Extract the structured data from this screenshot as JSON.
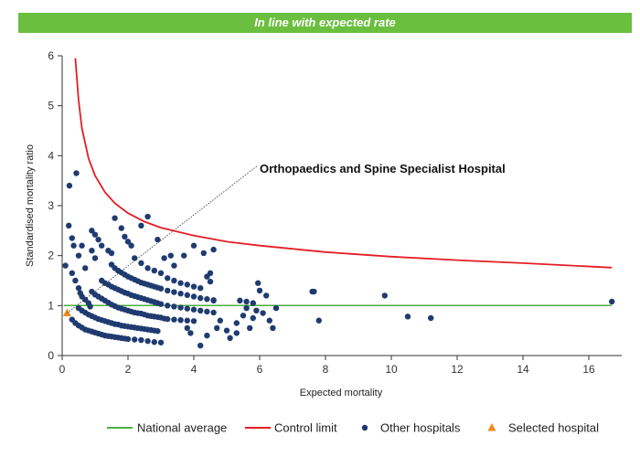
{
  "banner": {
    "text": "In line with expected rate"
  },
  "chart_data": {
    "type": "scatter",
    "title": "",
    "xlabel": "Expected mortality",
    "ylabel": "Standardised mortality ratio",
    "xlim": [
      0,
      17
    ],
    "ylim": [
      0,
      6
    ],
    "xticks": [
      0,
      2,
      4,
      6,
      8,
      10,
      12,
      14,
      16
    ],
    "yticks": [
      0,
      1,
      2,
      3,
      4,
      5,
      6
    ],
    "grid": false,
    "legend_position": "bottom",
    "annotation": {
      "text": "Orthopaedics and Spine Specialist Hospital",
      "target": [
        0.15,
        0.85
      ]
    },
    "series": [
      {
        "name": "National average",
        "kind": "line",
        "color": "#4caf3f",
        "x": [
          0.05,
          16.7
        ],
        "y": [
          1,
          1
        ]
      },
      {
        "name": "Control limit",
        "kind": "line",
        "color": "#e31e24",
        "x": [
          0.4,
          0.5,
          0.6,
          0.8,
          1.0,
          1.3,
          1.6,
          2.0,
          2.5,
          3.0,
          4.0,
          5.0,
          6.0,
          8.0,
          10.0,
          12.0,
          14.0,
          16.7
        ],
        "y": [
          5.95,
          5.1,
          4.55,
          3.95,
          3.6,
          3.27,
          3.05,
          2.85,
          2.68,
          2.56,
          2.4,
          2.28,
          2.2,
          2.07,
          1.98,
          1.91,
          1.85,
          1.76
        ]
      },
      {
        "name": "Other hospitals",
        "kind": "scatter",
        "color": "#1f3b70",
        "points": [
          [
            0.1,
            1.8
          ],
          [
            0.2,
            2.6
          ],
          [
            0.22,
            3.4
          ],
          [
            0.43,
            3.65
          ],
          [
            0.3,
            2.35
          ],
          [
            0.35,
            2.2
          ],
          [
            0.5,
            2.0
          ],
          [
            0.6,
            2.2
          ],
          [
            0.3,
            1.65
          ],
          [
            0.4,
            1.5
          ],
          [
            0.5,
            1.35
          ],
          [
            0.55,
            1.25
          ],
          [
            0.6,
            1.18
          ],
          [
            0.7,
            1.12
          ],
          [
            0.8,
            1.05
          ],
          [
            0.85,
            0.98
          ],
          [
            0.3,
            0.72
          ],
          [
            0.4,
            0.65
          ],
          [
            0.5,
            0.6
          ],
          [
            0.6,
            0.56
          ],
          [
            0.7,
            0.52
          ],
          [
            0.8,
            0.5
          ],
          [
            0.9,
            0.48
          ],
          [
            1.0,
            0.46
          ],
          [
            1.1,
            0.44
          ],
          [
            1.2,
            0.42
          ],
          [
            1.3,
            0.4
          ],
          [
            1.4,
            0.39
          ],
          [
            1.5,
            0.38
          ],
          [
            1.6,
            0.37
          ],
          [
            1.7,
            0.36
          ],
          [
            1.8,
            0.35
          ],
          [
            1.9,
            0.34
          ],
          [
            2.0,
            0.33
          ],
          [
            2.2,
            0.32
          ],
          [
            2.4,
            0.31
          ],
          [
            2.6,
            0.29
          ],
          [
            2.8,
            0.27
          ],
          [
            3.0,
            0.26
          ],
          [
            0.5,
            0.95
          ],
          [
            0.6,
            0.9
          ],
          [
            0.7,
            0.86
          ],
          [
            0.8,
            0.82
          ],
          [
            0.9,
            0.79
          ],
          [
            1.0,
            0.76
          ],
          [
            1.1,
            0.73
          ],
          [
            1.2,
            0.71
          ],
          [
            1.3,
            0.69
          ],
          [
            1.4,
            0.67
          ],
          [
            1.5,
            0.65
          ],
          [
            1.6,
            0.63
          ],
          [
            1.7,
            0.62
          ],
          [
            1.8,
            0.6
          ],
          [
            1.9,
            0.59
          ],
          [
            2.0,
            0.58
          ],
          [
            2.1,
            0.57
          ],
          [
            2.2,
            0.56
          ],
          [
            2.3,
            0.55
          ],
          [
            2.4,
            0.54
          ],
          [
            2.5,
            0.53
          ],
          [
            2.6,
            0.52
          ],
          [
            2.7,
            0.51
          ],
          [
            2.8,
            0.5
          ],
          [
            2.9,
            0.49
          ],
          [
            0.9,
            1.28
          ],
          [
            1.0,
            1.22
          ],
          [
            1.1,
            1.18
          ],
          [
            1.2,
            1.14
          ],
          [
            1.3,
            1.1
          ],
          [
            1.4,
            1.06
          ],
          [
            1.5,
            1.02
          ],
          [
            1.6,
            0.99
          ],
          [
            1.7,
            0.96
          ],
          [
            1.8,
            0.94
          ],
          [
            1.9,
            0.92
          ],
          [
            2.0,
            0.9
          ],
          [
            2.1,
            0.88
          ],
          [
            2.2,
            0.86
          ],
          [
            2.3,
            0.85
          ],
          [
            2.4,
            0.84
          ],
          [
            2.5,
            0.82
          ],
          [
            2.6,
            0.8
          ],
          [
            2.7,
            0.79
          ],
          [
            2.8,
            0.78
          ],
          [
            2.9,
            0.77
          ],
          [
            3.0,
            0.76
          ],
          [
            3.1,
            0.74
          ],
          [
            3.2,
            0.73
          ],
          [
            3.4,
            0.72
          ],
          [
            3.6,
            0.71
          ],
          [
            3.8,
            0.7
          ],
          [
            4.0,
            0.69
          ],
          [
            1.2,
            1.5
          ],
          [
            1.3,
            1.45
          ],
          [
            1.4,
            1.42
          ],
          [
            1.5,
            1.38
          ],
          [
            1.6,
            1.35
          ],
          [
            1.7,
            1.32
          ],
          [
            1.8,
            1.29
          ],
          [
            1.9,
            1.26
          ],
          [
            2.0,
            1.24
          ],
          [
            2.1,
            1.21
          ],
          [
            2.2,
            1.19
          ],
          [
            2.3,
            1.17
          ],
          [
            2.4,
            1.15
          ],
          [
            2.5,
            1.13
          ],
          [
            2.6,
            1.11
          ],
          [
            2.7,
            1.09
          ],
          [
            2.8,
            1.07
          ],
          [
            2.9,
            1.05
          ],
          [
            3.0,
            1.03
          ],
          [
            3.2,
            1.0
          ],
          [
            3.4,
            0.98
          ],
          [
            3.6,
            0.96
          ],
          [
            3.8,
            0.94
          ],
          [
            4.0,
            0.92
          ],
          [
            4.2,
            0.9
          ],
          [
            4.4,
            0.88
          ],
          [
            4.6,
            0.86
          ],
          [
            1.5,
            1.82
          ],
          [
            1.6,
            1.75
          ],
          [
            1.7,
            1.7
          ],
          [
            1.8,
            1.66
          ],
          [
            1.9,
            1.62
          ],
          [
            2.0,
            1.58
          ],
          [
            2.1,
            1.55
          ],
          [
            2.2,
            1.52
          ],
          [
            2.3,
            1.49
          ],
          [
            2.4,
            1.46
          ],
          [
            2.5,
            1.44
          ],
          [
            2.6,
            1.42
          ],
          [
            2.7,
            1.4
          ],
          [
            2.8,
            1.38
          ],
          [
            2.9,
            1.36
          ],
          [
            3.0,
            1.34
          ],
          [
            3.2,
            1.3
          ],
          [
            3.4,
            1.27
          ],
          [
            3.6,
            1.24
          ],
          [
            3.8,
            1.21
          ],
          [
            4.0,
            1.18
          ],
          [
            4.2,
            1.15
          ],
          [
            4.4,
            1.13
          ],
          [
            4.6,
            1.11
          ],
          [
            1.4,
            2.1
          ],
          [
            1.5,
            2.05
          ],
          [
            1.9,
            2.38
          ],
          [
            2.0,
            2.28
          ],
          [
            2.1,
            2.2
          ],
          [
            2.2,
            1.95
          ],
          [
            2.4,
            1.85
          ],
          [
            2.6,
            1.75
          ],
          [
            2.8,
            1.7
          ],
          [
            3.0,
            1.65
          ],
          [
            3.2,
            1.55
          ],
          [
            3.4,
            1.5
          ],
          [
            3.6,
            1.45
          ],
          [
            3.8,
            1.42
          ],
          [
            4.0,
            1.38
          ],
          [
            4.2,
            1.35
          ],
          [
            4.4,
            1.58
          ],
          [
            4.5,
            1.48
          ],
          [
            4.6,
            1.1
          ],
          [
            1.6,
            2.75
          ],
          [
            1.8,
            2.55
          ],
          [
            2.4,
            2.6
          ],
          [
            2.6,
            2.78
          ],
          [
            2.9,
            2.32
          ],
          [
            3.1,
            1.95
          ],
          [
            3.3,
            2.0
          ],
          [
            3.4,
            1.8
          ],
          [
            3.7,
            2.0
          ],
          [
            4.0,
            2.2
          ],
          [
            4.3,
            2.05
          ],
          [
            4.6,
            2.12
          ],
          [
            4.5,
            1.65
          ],
          [
            0.9,
            2.5
          ],
          [
            1.0,
            2.42
          ],
          [
            1.1,
            2.32
          ],
          [
            0.9,
            2.1
          ],
          [
            1.2,
            2.2
          ],
          [
            1.0,
            1.95
          ],
          [
            0.7,
            1.75
          ],
          [
            3.8,
            0.55
          ],
          [
            3.9,
            0.45
          ],
          [
            4.2,
            0.2
          ],
          [
            4.4,
            0.4
          ],
          [
            4.7,
            0.55
          ],
          [
            4.8,
            0.7
          ],
          [
            5.0,
            0.5
          ],
          [
            5.1,
            0.35
          ],
          [
            5.3,
            0.45
          ],
          [
            5.3,
            0.65
          ],
          [
            5.5,
            0.8
          ],
          [
            5.6,
            0.95
          ],
          [
            5.7,
            0.55
          ],
          [
            5.8,
            0.75
          ],
          [
            5.8,
            1.05
          ],
          [
            5.9,
            0.9
          ],
          [
            5.95,
            1.45
          ],
          [
            6.0,
            1.3
          ],
          [
            6.1,
            0.85
          ],
          [
            6.2,
            1.2
          ],
          [
            6.3,
            0.7
          ],
          [
            6.4,
            0.55
          ],
          [
            5.4,
            1.1
          ],
          [
            5.6,
            1.08
          ],
          [
            6.5,
            0.95
          ],
          [
            7.6,
            1.28
          ],
          [
            7.65,
            1.28
          ],
          [
            7.8,
            0.7
          ],
          [
            9.8,
            1.2
          ],
          [
            10.5,
            0.78
          ],
          [
            11.2,
            0.75
          ],
          [
            16.7,
            1.08
          ]
        ]
      },
      {
        "name": "Selected hospital",
        "kind": "scatter",
        "marker": "triangle",
        "color": "#f0891e",
        "points": [
          [
            0.15,
            0.85
          ]
        ]
      }
    ]
  }
}
